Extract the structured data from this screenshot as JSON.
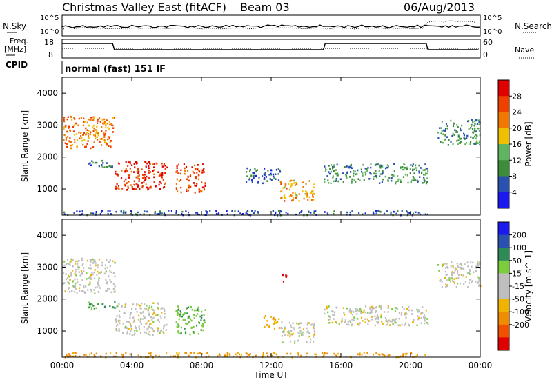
{
  "header": {
    "station": "Christmas Valley East (fitACF)",
    "beam": "Beam 03",
    "date": "06/Aug/2013"
  },
  "status_panels": {
    "nsky_label": "N.Sky",
    "nsearch_label": "N.Search",
    "noise_ticks_left": [
      "10^5",
      "10^0"
    ],
    "noise_ticks_right": [
      "10^5",
      "10^0"
    ],
    "freq_label": "Freq.",
    "freq_unit": "[MHz]",
    "freq_ticks": [
      "18",
      "8"
    ],
    "nave_label": "Nave",
    "nave_ticks": [
      "60",
      "0"
    ],
    "cpid_label": "CPID",
    "cpid_value": "normal (fast) 151 IF"
  },
  "colors": {
    "power": [
      "#1a1af0",
      "#2a50b0",
      "#3c8c3c",
      "#5fb45f",
      "#f0c000",
      "#f07800",
      "#f04000",
      "#e00000"
    ],
    "velocity": [
      "#1a1af0",
      "#2a50b0",
      "#2e8b57",
      "#7ccd3c",
      "#bebebe",
      "#bebebe",
      "#f0b400",
      "#f08c00",
      "#f05000",
      "#e00000"
    ]
  },
  "chart_data": [
    {
      "type": "heatmap",
      "title": "Power",
      "xlabel": "",
      "ylabel": "Slant Range [km]",
      "x_ticks": [
        "00:00",
        "04:00",
        "08:00",
        "12:00",
        "16:00",
        "20:00",
        "00:00"
      ],
      "xlim_hours": [
        0,
        24
      ],
      "y_ticks": [
        1000,
        2000,
        3000,
        4000
      ],
      "ylim": [
        180,
        4500
      ],
      "colorbar_label": "Power [dB]",
      "colorbar_ticks": [
        4,
        8,
        12,
        16,
        20,
        24,
        28
      ],
      "colorbar_range": [
        0,
        32
      ],
      "features": [
        {
          "t": [
            0.0,
            3.0
          ],
          "r": [
            2300,
            3300
          ],
          "level": 22
        },
        {
          "t": [
            1.5,
            3.0
          ],
          "r": [
            1700,
            1950
          ],
          "level": 8
        },
        {
          "t": [
            3.0,
            6.0
          ],
          "r": [
            1000,
            1900
          ],
          "level": 28
        },
        {
          "t": [
            6.5,
            8.2
          ],
          "r": [
            900,
            1800
          ],
          "level": 26
        },
        {
          "t": [
            12.5,
            14.5
          ],
          "r": [
            650,
            1300
          ],
          "level": 20
        },
        {
          "t": [
            10.5,
            12.5
          ],
          "r": [
            1200,
            1700
          ],
          "level": 6
        },
        {
          "t": [
            15.0,
            21.0
          ],
          "r": [
            1200,
            1800
          ],
          "level": 10
        },
        {
          "t": [
            21.5,
            24.0
          ],
          "r": [
            2400,
            3200
          ],
          "level": 10
        },
        {
          "t": [
            0.0,
            21.0
          ],
          "r": [
            200,
            350
          ],
          "level": 6
        }
      ]
    },
    {
      "type": "heatmap",
      "title": "Velocity",
      "xlabel": "Time UT",
      "ylabel": "Slant Range [km]",
      "x_ticks": [
        "00:00",
        "04:00",
        "08:00",
        "12:00",
        "16:00",
        "20:00",
        "00:00"
      ],
      "xlim_hours": [
        0,
        24
      ],
      "y_ticks": [
        1000,
        2000,
        3000,
        4000
      ],
      "ylim": [
        180,
        4500
      ],
      "colorbar_label": "Velocity [m s^-1]",
      "colorbar_ticks": [
        200,
        100,
        50,
        15,
        -15,
        -50,
        -100,
        -200
      ],
      "features": [
        {
          "t": [
            0.0,
            3.0
          ],
          "r": [
            2200,
            3300
          ],
          "velocity": 0
        },
        {
          "t": [
            1.5,
            3.0
          ],
          "r": [
            1700,
            1950
          ],
          "velocity": 60
        },
        {
          "t": [
            3.0,
            6.0
          ],
          "r": [
            900,
            1900
          ],
          "velocity": 0
        },
        {
          "t": [
            6.5,
            8.2
          ],
          "r": [
            900,
            1800
          ],
          "velocity": 40
        },
        {
          "t": [
            11.5,
            12.5
          ],
          "r": [
            1100,
            1500
          ],
          "velocity": -40
        },
        {
          "t": [
            12.6,
            12.9
          ],
          "r": [
            2500,
            2800
          ],
          "velocity": -250
        },
        {
          "t": [
            12.5,
            14.5
          ],
          "r": [
            650,
            1300
          ],
          "velocity": 0
        },
        {
          "t": [
            15.0,
            21.0
          ],
          "r": [
            1200,
            1800
          ],
          "velocity": 0
        },
        {
          "t": [
            21.5,
            24.0
          ],
          "r": [
            2400,
            3200
          ],
          "velocity": 0
        },
        {
          "t": [
            0.0,
            21.0
          ],
          "r": [
            200,
            350
          ],
          "velocity": -60
        }
      ]
    }
  ]
}
